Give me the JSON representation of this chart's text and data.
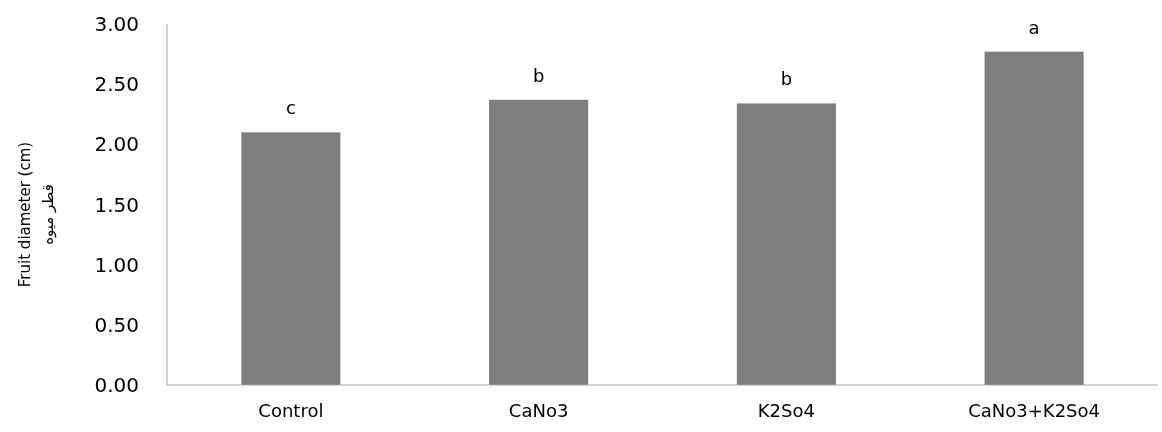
{
  "chart_data": {
    "type": "bar",
    "ylabel": "Fruit diameter (cm)\nقطر میوه",
    "categories": [
      "Control",
      "CaNo3",
      "K2So4",
      "CaNo3+K2So4"
    ],
    "values": [
      2.1,
      2.37,
      2.34,
      2.77
    ],
    "color": "#7f7f7f",
    "ylim": [
      0,
      3
    ],
    "yticks": [
      {
        "value": 0,
        "label": "0.00"
      },
      {
        "value": 0.5,
        "label": "0.50"
      },
      {
        "value": 1,
        "label": "1.00"
      },
      {
        "value": 1.5,
        "label": "1.50"
      },
      {
        "value": 2,
        "label": "2.00"
      },
      {
        "value": 2.5,
        "label": "2.50"
      },
      {
        "value": 3,
        "label": "3.00"
      }
    ],
    "grid": false,
    "annotations": [
      {
        "text": "c",
        "x": "Control",
        "y": 2.1
      },
      {
        "text": "b",
        "x": "CaNo3",
        "y": 2.37
      },
      {
        "text": "b",
        "x": "K2So4",
        "y": 2.34
      },
      {
        "text": "a",
        "x": "CaNo3+K2So4",
        "y": 2.77
      }
    ]
  }
}
